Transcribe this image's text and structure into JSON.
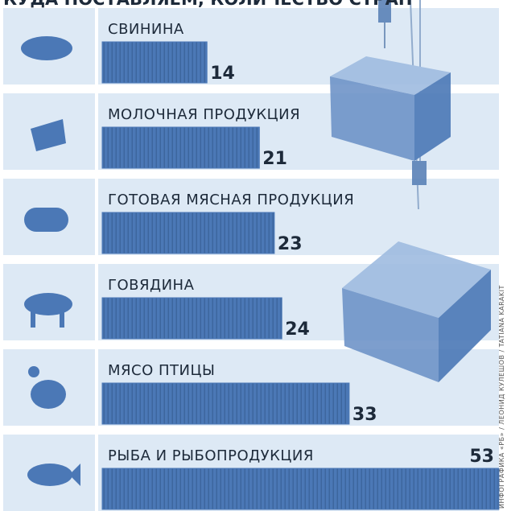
{
  "chart_data": {
    "type": "bar",
    "title": "КУДА ПОСТАВЛЯЕМ, КОЛИЧЕСТВО СТРАН",
    "categories": [
      "СВИНИНА",
      "МОЛОЧНАЯ ПРОДУКЦИЯ",
      "ГОТОВАЯ МЯСНАЯ ПРОДУКЦИЯ",
      "ГОВЯДИНА",
      "МЯСО ПТИЦЫ",
      "РЫБА И РЫБОПРОДУКЦИЯ"
    ],
    "values": [
      14,
      21,
      23,
      24,
      33,
      53
    ],
    "color": "#4b78b6",
    "credit": "ИНФОГРАФИКА «РБ» / ЛЕОНИД КУЛЕШОВ / TATIANA KARAKIT"
  }
}
